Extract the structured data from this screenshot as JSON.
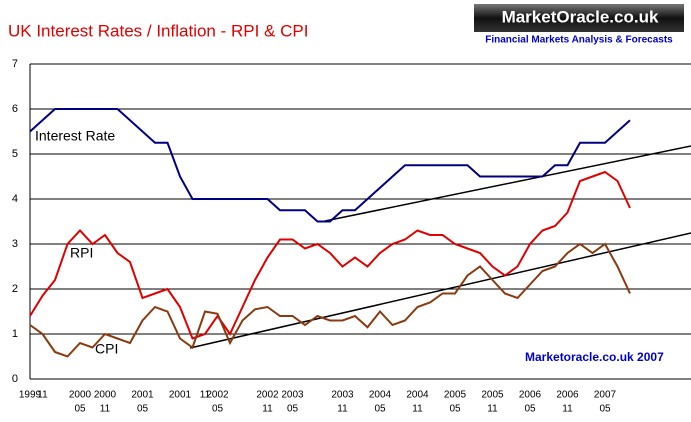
{
  "chart_data": {
    "type": "line",
    "title": "UK Interest Rates / Inflation - RPI & CPI",
    "logo": {
      "name": "MarketOracle.co.uk",
      "tagline": "Financial Markets Analysis & Forecasts"
    },
    "credit": "Marketoracle.co.uk 2007",
    "categories": [
      "1999",
      "11",
      null,
      null,
      "2000",
      null,
      "2000",
      null,
      null,
      "2001",
      null,
      null,
      "2001",
      null,
      "11",
      "2002",
      null,
      null,
      null,
      "2002",
      null,
      "2003",
      null,
      null,
      null,
      "2003",
      null,
      null,
      "2004",
      null,
      null,
      "2004",
      null,
      null,
      "2005",
      null,
      null,
      "2005",
      null,
      null,
      "2006",
      null,
      null,
      "2006",
      null,
      null,
      "2007",
      null,
      null
    ],
    "categories_sub": [
      null,
      null,
      null,
      null,
      "05",
      null,
      "11",
      null,
      null,
      "05",
      null,
      null,
      null,
      null,
      null,
      "05",
      null,
      null,
      null,
      "11",
      null,
      "05",
      null,
      null,
      null,
      "11",
      null,
      null,
      "05",
      null,
      null,
      "11",
      null,
      null,
      "05",
      null,
      null,
      "11",
      null,
      null,
      "05",
      null,
      null,
      "11",
      null,
      null,
      "05",
      null,
      null
    ],
    "series": [
      {
        "name": "Interest Rate",
        "color": "#000080",
        "values": [
          5.5,
          5.75,
          6,
          6,
          6,
          6,
          6,
          6,
          5.75,
          5.5,
          5.25,
          5.25,
          4.5,
          4,
          4,
          4,
          4,
          4,
          4,
          4,
          3.75,
          3.75,
          3.75,
          3.5,
          3.5,
          3.75,
          3.75,
          4,
          4.25,
          4.5,
          4.75,
          4.75,
          4.75,
          4.75,
          4.75,
          4.75,
          4.5,
          4.5,
          4.5,
          4.5,
          4.5,
          4.5,
          4.75,
          4.75,
          5.25,
          5.25,
          5.25,
          5.5,
          5.75
        ]
      },
      {
        "name": "RPI",
        "color": "#e00000",
        "values": [
          1.4,
          1.85,
          2.2,
          3.0,
          3.3,
          3.0,
          3.2,
          2.8,
          2.6,
          1.8,
          1.9,
          2.0,
          1.6,
          0.9,
          1.0,
          1.4,
          1.0,
          1.6,
          2.2,
          2.7,
          3.1,
          3.1,
          2.9,
          3.0,
          2.8,
          2.5,
          2.7,
          2.5,
          2.8,
          3.0,
          3.1,
          3.3,
          3.2,
          3.2,
          3.0,
          2.9,
          2.8,
          2.5,
          2.3,
          2.5,
          3.0,
          3.3,
          3.4,
          3.7,
          4.4,
          4.5,
          4.6,
          4.4,
          3.8
        ]
      },
      {
        "name": "CPI",
        "color": "#8b3a0f",
        "values": [
          1.2,
          1.0,
          0.6,
          0.5,
          0.8,
          0.7,
          1.0,
          0.9,
          0.8,
          1.3,
          1.6,
          1.5,
          0.9,
          0.7,
          1.5,
          1.45,
          0.8,
          1.3,
          1.55,
          1.6,
          1.4,
          1.4,
          1.2,
          1.4,
          1.3,
          1.3,
          1.4,
          1.15,
          1.5,
          1.2,
          1.3,
          1.6,
          1.7,
          1.9,
          1.9,
          2.3,
          2.5,
          2.2,
          1.9,
          1.8,
          2.1,
          2.4,
          2.5,
          2.8,
          3.0,
          2.8,
          3.0,
          2.5,
          1.9
        ]
      }
    ],
    "ylim": [
      0,
      7
    ],
    "yticks": [
      0,
      1,
      2,
      3,
      4,
      5,
      6,
      7
    ],
    "grid": true
  }
}
